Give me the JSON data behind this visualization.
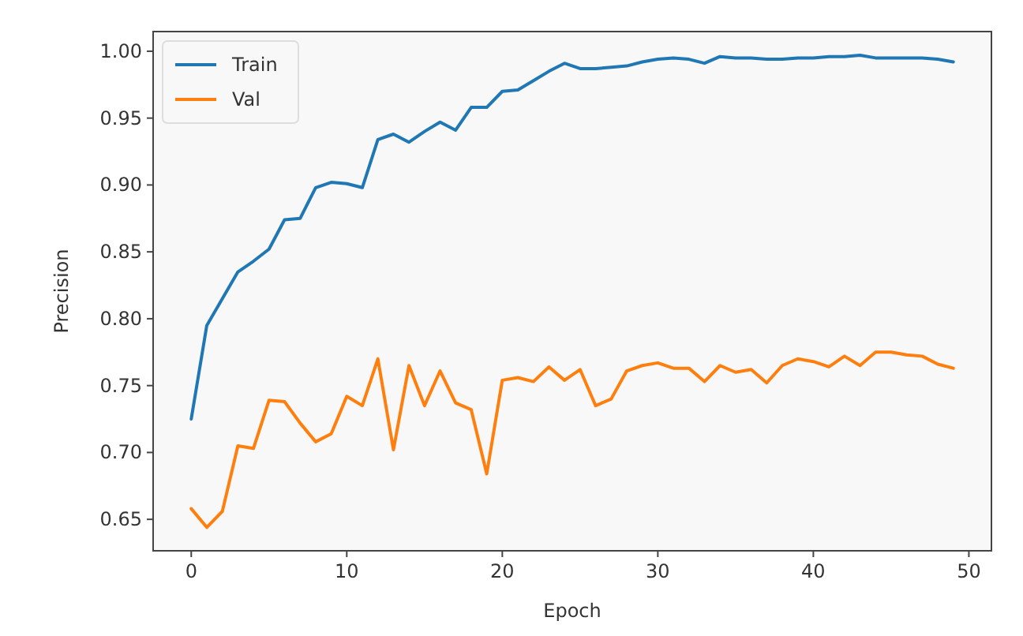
{
  "chart_data": {
    "type": "line",
    "xlabel": "Epoch",
    "ylabel": "Precision",
    "x": [
      0,
      1,
      2,
      3,
      4,
      5,
      6,
      7,
      8,
      9,
      10,
      11,
      12,
      13,
      14,
      15,
      16,
      17,
      18,
      19,
      20,
      21,
      22,
      23,
      24,
      25,
      26,
      27,
      28,
      29,
      30,
      31,
      32,
      33,
      34,
      35,
      36,
      37,
      38,
      39,
      40,
      41,
      42,
      43,
      44,
      45,
      46,
      47,
      48,
      49
    ],
    "series": [
      {
        "name": "Train",
        "color": "#1f77b4",
        "values": [
          0.725,
          0.795,
          0.815,
          0.835,
          0.843,
          0.852,
          0.874,
          0.875,
          0.898,
          0.902,
          0.901,
          0.898,
          0.934,
          0.938,
          0.932,
          0.94,
          0.947,
          0.941,
          0.958,
          0.958,
          0.97,
          0.971,
          0.978,
          0.985,
          0.991,
          0.987,
          0.987,
          0.988,
          0.989,
          0.992,
          0.994,
          0.995,
          0.994,
          0.991,
          0.996,
          0.995,
          0.995,
          0.994,
          0.994,
          0.995,
          0.995,
          0.996,
          0.996,
          0.997,
          0.995,
          0.995,
          0.995,
          0.995,
          0.994,
          0.992
        ]
      },
      {
        "name": "Val",
        "color": "#ff7f0e",
        "values": [
          0.658,
          0.644,
          0.656,
          0.705,
          0.703,
          0.739,
          0.738,
          0.722,
          0.708,
          0.714,
          0.742,
          0.735,
          0.77,
          0.702,
          0.765,
          0.735,
          0.761,
          0.737,
          0.732,
          0.684,
          0.754,
          0.756,
          0.753,
          0.764,
          0.754,
          0.762,
          0.735,
          0.74,
          0.761,
          0.765,
          0.767,
          0.763,
          0.763,
          0.753,
          0.765,
          0.76,
          0.762,
          0.752,
          0.765,
          0.77,
          0.768,
          0.764,
          0.772,
          0.765,
          0.775,
          0.775,
          0.773,
          0.772,
          0.766,
          0.763
        ]
      }
    ],
    "xlim": [
      -2.45,
      51.45
    ],
    "xticks": [
      0,
      10,
      20,
      30,
      40,
      50
    ],
    "ylim": [
      0.6265,
      1.0147
    ],
    "yticks": [
      {
        "value": 0.65,
        "label": "0.65"
      },
      {
        "value": 0.7,
        "label": "0.70"
      },
      {
        "value": 0.75,
        "label": "0.75"
      },
      {
        "value": 0.8,
        "label": "0.80"
      },
      {
        "value": 0.85,
        "label": "0.85"
      },
      {
        "value": 0.9,
        "label": "0.90"
      },
      {
        "value": 0.95,
        "label": "0.95"
      },
      {
        "value": 1,
        "label": "1.00"
      }
    ],
    "legend": "top left",
    "grid": false,
    "marker": "none",
    "line_style": "solid"
  }
}
